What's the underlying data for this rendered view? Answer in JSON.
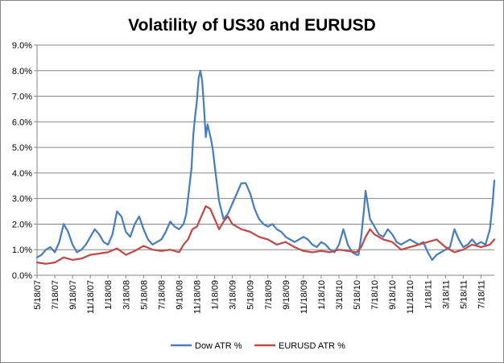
{
  "chart_data": {
    "type": "line",
    "title": "Volatility of US30 and EURUSD",
    "xlabel": "",
    "ylabel": "",
    "ylim": [
      0,
      9
    ],
    "y_ticks": [
      "0.0%",
      "1.0%",
      "2.0%",
      "3.0%",
      "4.0%",
      "5.0%",
      "6.0%",
      "7.0%",
      "8.0%",
      "9.0%"
    ],
    "x_tick_labels": [
      "5/18/07",
      "7/18/07",
      "9/18/07",
      "11/18/07",
      "1/18/08",
      "3/18/08",
      "5/18/08",
      "7/18/08",
      "9/18/08",
      "11/18/08",
      "1/18/09",
      "3/18/09",
      "5/18/09",
      "7/18/09",
      "9/18/09",
      "11/18/09",
      "1/18/10",
      "3/18/10",
      "5/18/10",
      "7/18/10",
      "9/18/10",
      "11/18/10",
      "1/18/11",
      "3/18/11",
      "5/18/11",
      "7/18/11"
    ],
    "x_unit": "months since 5/18/07",
    "x_range": [
      0,
      51.5
    ],
    "grid": "horizontal",
    "legend_position": "bottom",
    "series": [
      {
        "name": "Dow ATR %",
        "color": "#4a7ebb",
        "x": [
          0,
          0.5,
          1,
          1.5,
          2,
          2.5,
          3,
          3.5,
          4,
          4.5,
          5,
          5.5,
          6,
          6.5,
          7,
          7.5,
          8,
          8.5,
          9,
          9.5,
          10,
          10.5,
          11,
          11.5,
          12,
          12.5,
          13,
          13.5,
          14,
          14.5,
          15,
          15.5,
          16,
          16.5,
          16.8,
          17,
          17.2,
          17.4,
          17.6,
          17.8,
          18,
          18.2,
          18.4,
          18.6,
          18.8,
          19,
          19.2,
          19.4,
          19.6,
          19.8,
          20,
          20.5,
          21,
          21.5,
          22,
          22.5,
          23,
          23.5,
          24,
          24.5,
          25,
          25.5,
          26,
          26.5,
          27,
          27.5,
          28,
          28.5,
          29,
          29.5,
          30,
          30.5,
          31,
          31.5,
          32,
          32.5,
          33,
          33.5,
          34,
          34.5,
          35,
          35.5,
          36,
          36.2,
          36.5,
          36.8,
          37,
          37.5,
          38,
          38.5,
          39,
          39.5,
          40,
          40.5,
          41,
          41.5,
          42,
          42.5,
          43,
          43.5,
          44,
          44.5,
          45,
          45.5,
          46,
          46.5,
          47,
          47.5,
          48,
          48.5,
          49,
          49.5,
          50,
          50.5,
          51,
          51.3,
          51.5
        ],
        "values": [
          0.7,
          0.8,
          1.0,
          1.1,
          0.9,
          1.3,
          2.0,
          1.7,
          1.2,
          0.9,
          1.0,
          1.2,
          1.5,
          1.8,
          1.6,
          1.3,
          1.2,
          1.6,
          2.5,
          2.3,
          1.7,
          1.5,
          2.0,
          2.3,
          1.8,
          1.4,
          1.2,
          1.3,
          1.4,
          1.7,
          2.1,
          1.9,
          1.8,
          2.0,
          2.4,
          3.0,
          3.6,
          4.2,
          5.5,
          6.2,
          6.8,
          7.7,
          8.0,
          7.6,
          6.6,
          5.4,
          5.9,
          5.6,
          5.3,
          4.9,
          4.3,
          2.9,
          2.2,
          2.4,
          2.8,
          3.2,
          3.6,
          3.6,
          3.2,
          2.6,
          2.2,
          2.0,
          1.9,
          2.0,
          1.8,
          1.7,
          1.5,
          1.4,
          1.3,
          1.4,
          1.5,
          1.4,
          1.2,
          1.1,
          1.3,
          1.2,
          1.0,
          0.9,
          1.2,
          1.8,
          1.2,
          0.9,
          0.8,
          0.8,
          1.5,
          2.5,
          3.3,
          2.2,
          1.9,
          1.6,
          1.5,
          1.8,
          1.6,
          1.3,
          1.2,
          1.3,
          1.4,
          1.3,
          1.2,
          1.3,
          0.9,
          0.6,
          0.8,
          0.9,
          1.0,
          1.1,
          1.8,
          1.4,
          1.1,
          1.2,
          1.4,
          1.2,
          1.3,
          1.2,
          1.8,
          2.8,
          3.7
        ]
      },
      {
        "name": "EURUSD ATR %",
        "color": "#be4b48",
        "x": [
          0,
          1,
          2,
          3,
          4,
          5,
          6,
          7,
          8,
          9,
          10,
          11,
          12,
          13,
          14,
          15,
          16,
          16.5,
          17,
          17.5,
          18,
          18.5,
          19,
          19.5,
          20,
          20.5,
          21,
          21.5,
          22,
          23,
          24,
          25,
          26,
          27,
          28,
          29,
          30,
          31,
          32,
          33,
          34,
          35,
          36,
          36.5,
          37,
          37.5,
          38,
          39,
          40,
          41,
          42,
          43,
          44,
          45,
          46,
          47,
          48,
          49,
          50,
          51,
          51.5
        ],
        "values": [
          0.5,
          0.45,
          0.5,
          0.7,
          0.6,
          0.65,
          0.8,
          0.85,
          0.9,
          1.05,
          0.8,
          0.95,
          1.15,
          1.0,
          0.95,
          1.0,
          0.9,
          1.2,
          1.4,
          1.8,
          1.9,
          2.3,
          2.7,
          2.6,
          2.2,
          1.8,
          2.1,
          2.3,
          2.0,
          1.8,
          1.7,
          1.5,
          1.4,
          1.2,
          1.3,
          1.1,
          0.95,
          0.9,
          0.95,
          0.9,
          1.0,
          0.95,
          0.9,
          1.1,
          1.5,
          1.8,
          1.6,
          1.4,
          1.3,
          1.0,
          1.1,
          1.2,
          1.3,
          1.4,
          1.1,
          0.9,
          1.0,
          1.2,
          1.1,
          1.2,
          1.4
        ]
      }
    ]
  }
}
